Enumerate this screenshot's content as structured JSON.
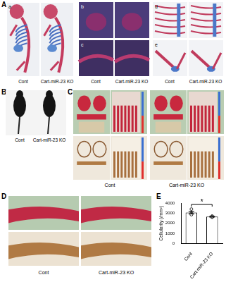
{
  "figure": {
    "panels": [
      {
        "label": "A",
        "groups": [
          "Cont",
          "Cart-miR-23 KO"
        ],
        "subpanels": [
          "a",
          "b",
          "c",
          "d",
          "e"
        ]
      },
      {
        "label": "B",
        "groups": [
          "Cont",
          "Cart-miR-23 KO"
        ]
      },
      {
        "label": "C",
        "groups": [
          "Cont",
          "Cart-miR-23 KO"
        ]
      },
      {
        "label": "D",
        "groups": [
          "Cont",
          "Cart-miR-23 KO"
        ]
      },
      {
        "label": "E"
      }
    ]
  },
  "chart_data": {
    "type": "bar",
    "y_label": "Cellularity (/mm²)",
    "categories": [
      "Cont",
      "Cart-miR-23 KO"
    ],
    "values": [
      3050,
      2650
    ],
    "errors": [
      130,
      40
    ],
    "points": [
      [
        3400,
        3000,
        2950,
        2850
      ],
      [
        2700,
        2680,
        2650,
        2620,
        2600,
        2650
      ]
    ],
    "color": "#ffffff",
    "annotation": "*",
    "ylim": [
      0,
      4000
    ],
    "yticks": [
      0,
      1000,
      2000,
      3000,
      4000
    ],
    "grid": false
  }
}
